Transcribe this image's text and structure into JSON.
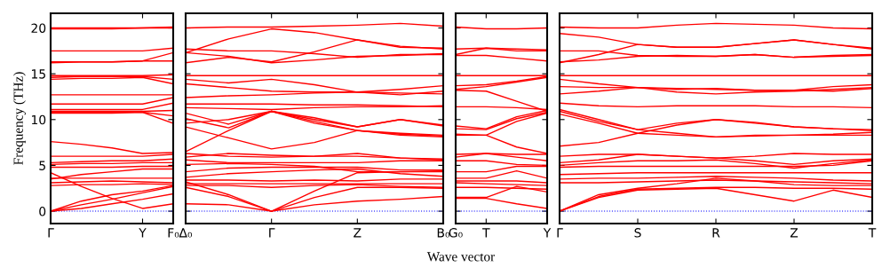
{
  "chart_data": [
    {
      "type": "line",
      "ylabel": "Frequency (THz)",
      "categories": [
        "Γ",
        null,
        null,
        "Y",
        "F₀"
      ],
      "ylim": [
        -1.35,
        21.6
      ],
      "yticks": [
        0,
        5,
        10,
        15,
        20
      ],
      "grid": false,
      "ref_lines": [
        {
          "axis": "y",
          "value": 0,
          "color": "#0000ff",
          "line_style": "dotted"
        }
      ],
      "series": [
        {
          "color": "#ff0000",
          "values": [
            20.0,
            20.0,
            20.0,
            20.0,
            20.1
          ]
        },
        {
          "color": "#ff0000",
          "values": [
            19.9,
            19.9,
            19.9,
            20.0,
            20.0
          ]
        },
        {
          "color": "#ff0000",
          "values": [
            17.5,
            17.5,
            17.5,
            17.5,
            17.8
          ]
        },
        {
          "color": "#ff0000",
          "values": [
            16.3,
            16.3,
            16.3,
            16.4,
            17.3
          ]
        },
        {
          "color": "#ff0000",
          "values": [
            16.2,
            16.3,
            16.3,
            16.4,
            16.4
          ]
        },
        {
          "color": "#ff0000",
          "values": [
            14.8,
            14.8,
            14.8,
            14.8,
            14.9
          ]
        },
        {
          "color": "#ff0000",
          "values": [
            14.6,
            14.7,
            14.7,
            14.7,
            14.4
          ]
        },
        {
          "color": "#ff0000",
          "values": [
            14.4,
            14.5,
            14.5,
            14.6,
            13.9
          ]
        },
        {
          "color": "#ff0000",
          "values": [
            12.7,
            12.7,
            12.7,
            12.7,
            12.7
          ]
        },
        {
          "color": "#ff0000",
          "values": [
            11.7,
            11.7,
            11.7,
            11.7,
            12.4
          ]
        },
        {
          "color": "#ff0000",
          "values": [
            11.1,
            11.1,
            11.1,
            11.1,
            11.8
          ]
        },
        {
          "color": "#ff0000",
          "values": [
            10.9,
            10.9,
            10.9,
            10.9,
            11.0
          ]
        },
        {
          "color": "#ff0000",
          "values": [
            10.8,
            10.8,
            10.8,
            10.8,
            10.4
          ]
        },
        {
          "color": "#ff0000",
          "values": [
            10.7,
            10.7,
            10.7,
            10.8,
            9.6
          ]
        },
        {
          "color": "#ff0000",
          "values": [
            7.6,
            7.3,
            6.9,
            6.3,
            6.4
          ]
        },
        {
          "color": "#ff0000",
          "values": [
            6.0,
            6.0,
            6.0,
            6.0,
            6.2
          ]
        },
        {
          "color": "#ff0000",
          "values": [
            5.3,
            5.4,
            5.5,
            5.5,
            5.7
          ]
        },
        {
          "color": "#ff0000",
          "values": [
            5.1,
            5.2,
            5.2,
            5.3,
            5.3
          ]
        },
        {
          "color": "#ff0000",
          "values": [
            4.8,
            4.8,
            4.8,
            4.9,
            4.9
          ]
        },
        {
          "color": "#ff0000",
          "values": [
            3.5,
            4.0,
            4.3,
            4.6,
            4.6
          ]
        },
        {
          "color": "#ff0000",
          "values": [
            3.6,
            3.6,
            3.6,
            3.6,
            3.6
          ]
        },
        {
          "color": "#ff0000",
          "values": [
            3.1,
            3.2,
            3.3,
            3.2,
            3.1
          ]
        },
        {
          "color": "#ff0000",
          "values": [
            2.8,
            2.9,
            2.9,
            3.0,
            2.9
          ]
        },
        {
          "color": "#ff0000",
          "values": [
            4.2,
            2.7,
            1.4,
            0.3,
            0.8
          ]
        },
        {
          "color": "#ff0000",
          "values": [
            0,
            1.1,
            1.8,
            2.2,
            2.8
          ]
        },
        {
          "color": "#ff0000",
          "values": [
            0,
            0.7,
            1.3,
            2.0,
            2.7
          ]
        },
        {
          "color": "#ff0000",
          "values": [
            0,
            0.3,
            0.8,
            1.3,
            1.9
          ]
        }
      ]
    },
    {
      "type": "line",
      "categories": [
        "Δ₀",
        null,
        "Γ",
        null,
        "Z",
        null,
        "B₀"
      ],
      "ylim": [
        -1.35,
        21.6
      ],
      "yticks": [
        0,
        5,
        10,
        15,
        20
      ],
      "tick_labels": "x",
      "grid": false,
      "ref_lines": [
        {
          "axis": "y",
          "value": 0,
          "color": "#0000ff",
          "line_style": "dotted"
        }
      ],
      "series": [
        {
          "color": "#ff0000",
          "values": [
            20.0,
            20.1,
            20.1,
            20.2,
            20.3,
            20.5,
            20.2
          ]
        },
        {
          "color": "#ff0000",
          "values": [
            17.3,
            18.8,
            19.9,
            19.5,
            18.7,
            18.0,
            17.7
          ]
        },
        {
          "color": "#ff0000",
          "values": [
            17.7,
            17.5,
            17.5,
            17.2,
            16.8,
            17.1,
            17.1
          ]
        },
        {
          "color": "#ff0000",
          "values": [
            16.2,
            16.8,
            16.3,
            17.4,
            18.7,
            17.9,
            17.8
          ]
        },
        {
          "color": "#ff0000",
          "values": [
            17.3,
            16.9,
            16.2,
            16.5,
            16.9,
            17.0,
            17.2
          ]
        },
        {
          "color": "#ff0000",
          "values": [
            14.8,
            14.8,
            14.8,
            14.8,
            14.8,
            14.8,
            14.8
          ]
        },
        {
          "color": "#ff0000",
          "values": [
            14.4,
            14.0,
            14.4,
            13.8,
            13.0,
            12.7,
            13.1
          ]
        },
        {
          "color": "#ff0000",
          "values": [
            13.9,
            13.5,
            13.1,
            13.0,
            13.0,
            12.9,
            12.8
          ]
        },
        {
          "color": "#ff0000",
          "values": [
            12.4,
            12.6,
            12.7,
            12.9,
            13.0,
            13.3,
            13.7
          ]
        },
        {
          "color": "#ff0000",
          "values": [
            11.7,
            11.7,
            11.7,
            11.6,
            11.6,
            11.5,
            11.4
          ]
        },
        {
          "color": "#ff0000",
          "values": [
            11.3,
            11.2,
            11.1,
            11.3,
            11.4,
            11.4,
            11.5
          ]
        },
        {
          "color": "#ff0000",
          "values": [
            10.7,
            9.5,
            10.9,
            9.8,
            8.8,
            8.4,
            8.2
          ]
        },
        {
          "color": "#ff0000",
          "values": [
            10.1,
            9.1,
            10.9,
            9.6,
            8.8,
            8.3,
            8.1
          ]
        },
        {
          "color": "#ff0000",
          "values": [
            9.6,
            10.0,
            10.9,
            10.0,
            9.2,
            10.0,
            9.4
          ]
        },
        {
          "color": "#ff0000",
          "values": [
            6.5,
            8.8,
            10.9,
            10.2,
            9.2,
            10.0,
            9.3
          ]
        },
        {
          "color": "#ff0000",
          "values": [
            9.2,
            8.0,
            6.8,
            7.5,
            8.8,
            8.5,
            8.3
          ]
        },
        {
          "color": "#ff0000",
          "values": [
            6.3,
            6.0,
            5.9,
            6.0,
            6.3,
            5.8,
            5.6
          ]
        },
        {
          "color": "#ff0000",
          "values": [
            5.9,
            6.3,
            6.1,
            6.0,
            6.0,
            5.8,
            5.7
          ]
        },
        {
          "color": "#ff0000",
          "values": [
            5.6,
            5.3,
            5.3,
            5.3,
            5.3,
            5.5,
            5.5
          ]
        },
        {
          "color": "#ff0000",
          "values": [
            5.1,
            5.2,
            5.1,
            4.9,
            4.3,
            4.3,
            4.4
          ]
        },
        {
          "color": "#ff0000",
          "values": [
            4.3,
            4.7,
            4.8,
            4.8,
            4.8,
            4.5,
            4.5
          ]
        },
        {
          "color": "#ff0000",
          "values": [
            3.7,
            4.1,
            4.3,
            4.5,
            4.6,
            4.1,
            3.8
          ]
        },
        {
          "color": "#ff0000",
          "values": [
            3.4,
            3.4,
            3.3,
            3.4,
            3.3,
            3.5,
            3.5
          ]
        },
        {
          "color": "#ff0000",
          "values": [
            3.0,
            3.0,
            3.0,
            3.0,
            3.0,
            3.0,
            3.0
          ]
        },
        {
          "color": "#ff0000",
          "values": [
            2.8,
            2.8,
            2.6,
            2.8,
            2.9,
            2.7,
            2.6
          ]
        },
        {
          "color": "#ff0000",
          "values": [
            2.6,
            1.6,
            0,
            2.2,
            4.2,
            4.3,
            4.3
          ]
        },
        {
          "color": "#ff0000",
          "values": [
            3.2,
            1.8,
            0,
            1.5,
            2.6,
            2.6,
            2.5
          ]
        },
        {
          "color": "#ff0000",
          "values": [
            0.8,
            0.7,
            0,
            0.7,
            1.1,
            1.3,
            1.6
          ]
        }
      ]
    },
    {
      "type": "line",
      "xlabel": "Wave vector",
      "categories": [
        "G₀",
        "T",
        null,
        "Y"
      ],
      "ylim": [
        -1.35,
        21.6
      ],
      "yticks": [
        0,
        5,
        10,
        15,
        20
      ],
      "tick_labels": "x",
      "grid": false,
      "ref_lines": [
        {
          "axis": "y",
          "value": 0,
          "color": "#0000ff",
          "line_style": "dotted"
        }
      ],
      "series": [
        {
          "color": "#ff0000",
          "values": [
            20.1,
            19.9,
            19.9,
            20.0
          ]
        },
        {
          "color": "#ff0000",
          "values": [
            17.7,
            17.8,
            17.7,
            17.6
          ]
        },
        {
          "color": "#ff0000",
          "values": [
            17.0,
            17.0,
            16.7,
            16.4
          ]
        },
        {
          "color": "#ff0000",
          "values": [
            17.1,
            17.8,
            17.5,
            17.5
          ]
        },
        {
          "color": "#ff0000",
          "values": [
            14.8,
            14.8,
            14.8,
            14.8
          ]
        },
        {
          "color": "#ff0000",
          "values": [
            13.7,
            13.8,
            14.2,
            14.7
          ]
        },
        {
          "color": "#ff0000",
          "values": [
            13.3,
            13.6,
            14.1,
            14.6
          ]
        },
        {
          "color": "#ff0000",
          "values": [
            13.2,
            13.1,
            12.0,
            10.9
          ]
        },
        {
          "color": "#ff0000",
          "values": [
            11.4,
            11.4,
            11.3,
            11.1
          ]
        },
        {
          "color": "#ff0000",
          "values": [
            9.3,
            9.0,
            10.3,
            11.0
          ]
        },
        {
          "color": "#ff0000",
          "values": [
            9.0,
            8.9,
            10.1,
            10.8
          ]
        },
        {
          "color": "#ff0000",
          "values": [
            8.3,
            8.3,
            9.8,
            10.7
          ]
        },
        {
          "color": "#ff0000",
          "values": [
            8.4,
            8.3,
            7.0,
            6.3
          ]
        },
        {
          "color": "#ff0000",
          "values": [
            6.2,
            6.3,
            6.2,
            6.2
          ]
        },
        {
          "color": "#ff0000",
          "values": [
            5.9,
            6.3,
            5.9,
            5.5
          ]
        },
        {
          "color": "#ff0000",
          "values": [
            5.5,
            5.5,
            5.1,
            5.0
          ]
        },
        {
          "color": "#ff0000",
          "values": [
            4.3,
            4.3,
            4.9,
            4.9
          ]
        },
        {
          "color": "#ff0000",
          "values": [
            3.6,
            3.6,
            4.4,
            3.6
          ]
        },
        {
          "color": "#ff0000",
          "values": [
            3.3,
            3.3,
            3.3,
            3.1
          ]
        },
        {
          "color": "#ff0000",
          "values": [
            3.1,
            3.0,
            2.9,
            2.8
          ]
        },
        {
          "color": "#ff0000",
          "values": [
            2.6,
            2.6,
            2.5,
            2.4
          ]
        },
        {
          "color": "#ff0000",
          "values": [
            1.5,
            1.5,
            2.7,
            2.1
          ]
        },
        {
          "color": "#ff0000",
          "values": [
            1.4,
            1.4,
            0.8,
            0.3
          ]
        }
      ]
    },
    {
      "type": "line",
      "categories": [
        "Γ",
        null,
        "S",
        null,
        "R",
        null,
        "Z",
        null,
        "T"
      ],
      "ylim": [
        -1.35,
        21.6
      ],
      "yticks": [
        0,
        5,
        10,
        15,
        20
      ],
      "tick_labels": "x",
      "grid": false,
      "ref_lines": [
        {
          "axis": "y",
          "value": 0,
          "color": "#0000ff",
          "line_style": "dotted"
        }
      ],
      "series": [
        {
          "color": "#ff0000",
          "values": [
            20.1,
            20.0,
            20.0,
            20.3,
            20.5,
            20.4,
            20.3,
            20.0,
            19.9
          ]
        },
        {
          "color": "#ff0000",
          "values": [
            19.4,
            19.0,
            18.2,
            17.9,
            17.9,
            18.3,
            18.7,
            18.2,
            17.8
          ]
        },
        {
          "color": "#ff0000",
          "values": [
            17.5,
            17.5,
            17.0,
            16.9,
            16.9,
            17.1,
            16.8,
            17.0,
            17.1
          ]
        },
        {
          "color": "#ff0000",
          "values": [
            16.2,
            17.1,
            18.2,
            17.9,
            17.9,
            18.3,
            18.7,
            18.2,
            17.7
          ]
        },
        {
          "color": "#ff0000",
          "values": [
            16.3,
            16.5,
            16.9,
            17.0,
            16.9,
            17.1,
            16.8,
            16.9,
            17.0
          ]
        },
        {
          "color": "#ff0000",
          "values": [
            14.8,
            14.8,
            14.8,
            14.8,
            14.8,
            14.8,
            14.8,
            14.8,
            14.8
          ]
        },
        {
          "color": "#ff0000",
          "values": [
            14.4,
            13.9,
            13.5,
            13.4,
            13.3,
            13.2,
            13.2,
            13.6,
            13.8
          ]
        },
        {
          "color": "#ff0000",
          "values": [
            13.6,
            13.5,
            13.5,
            13.0,
            12.8,
            13.0,
            13.1,
            13.3,
            13.5
          ]
        },
        {
          "color": "#ff0000",
          "values": [
            12.8,
            13.1,
            13.5,
            13.3,
            13.4,
            13.2,
            13.2,
            13.1,
            13.4
          ]
        },
        {
          "color": "#ff0000",
          "values": [
            11.8,
            11.5,
            11.4,
            11.5,
            11.5,
            11.5,
            11.4,
            11.4,
            11.3
          ]
        },
        {
          "color": "#ff0000",
          "values": [
            11.1,
            10.0,
            8.9,
            9.6,
            10.0,
            9.7,
            9.2,
            9.0,
            8.9
          ]
        },
        {
          "color": "#ff0000",
          "values": [
            10.9,
            9.8,
            8.9,
            8.5,
            8.1,
            8.2,
            8.3,
            8.4,
            8.6
          ]
        },
        {
          "color": "#ff0000",
          "values": [
            10.6,
            9.6,
            8.5,
            8.3,
            8.1,
            8.3,
            8.3,
            8.3,
            8.3
          ]
        },
        {
          "color": "#ff0000",
          "values": [
            7.1,
            7.5,
            8.5,
            9.4,
            10.0,
            9.6,
            9.2,
            9.0,
            8.8
          ]
        },
        {
          "color": "#ff0000",
          "values": [
            6.0,
            6.2,
            6.2,
            6.0,
            5.8,
            6.0,
            6.3,
            6.2,
            6.2
          ]
        },
        {
          "color": "#ff0000",
          "values": [
            5.3,
            5.6,
            6.2,
            6.0,
            5.8,
            5.5,
            5.1,
            5.5,
            5.7
          ]
        },
        {
          "color": "#ff0000",
          "values": [
            5.0,
            5.3,
            5.5,
            5.5,
            5.6,
            5.2,
            4.7,
            5.2,
            5.6
          ]
        },
        {
          "color": "#ff0000",
          "values": [
            4.8,
            4.9,
            4.9,
            4.9,
            4.9,
            4.9,
            4.9,
            5.0,
            5.5
          ]
        },
        {
          "color": "#ff0000",
          "values": [
            4.0,
            4.1,
            4.2,
            4.2,
            4.2,
            4.2,
            4.2,
            4.2,
            4.2
          ]
        },
        {
          "color": "#ff0000",
          "values": [
            3.5,
            3.6,
            3.6,
            3.7,
            3.8,
            3.7,
            3.6,
            3.4,
            3.3
          ]
        },
        {
          "color": "#ff0000",
          "values": [
            3.1,
            3.1,
            3.2,
            3.3,
            3.4,
            3.3,
            3.2,
            3.1,
            3.0
          ]
        },
        {
          "color": "#ff0000",
          "values": [
            0,
            1.8,
            2.5,
            3.0,
            3.6,
            3.3,
            2.9,
            2.8,
            2.8
          ]
        },
        {
          "color": "#ff0000",
          "values": [
            0,
            1.6,
            2.4,
            2.5,
            2.6,
            2.6,
            2.5,
            2.5,
            2.4
          ]
        },
        {
          "color": "#ff0000",
          "values": [
            0,
            1.5,
            2.3,
            2.4,
            2.5,
            1.8,
            1.1,
            2.3,
            1.5
          ]
        }
      ]
    }
  ]
}
